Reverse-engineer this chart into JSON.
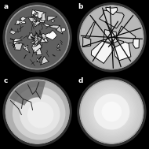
{
  "figsize": [
    1.9,
    1.89
  ],
  "dpi": 100,
  "bg_color": "#000000",
  "labels": [
    "a",
    "b",
    "c",
    "d"
  ],
  "label_color": "#ffffff",
  "label_fontsize": 6.5,
  "panel_a": {
    "disk_bg": "#606060",
    "piece_brightness_min": 0.72,
    "piece_brightness_max": 1.0,
    "n_pieces": 32,
    "crack_color": "#101010"
  },
  "panel_b": {
    "disk_bg": "#a0a0a0",
    "piece_brightness_min": 0.75,
    "piece_brightness_max": 0.98,
    "n_pieces": 7,
    "crack_color": "#101010"
  },
  "panel_c": {
    "disk_bg": "#c8c8c8",
    "inner_color": "#e0e0e0",
    "center_color": "#ececec",
    "crack_color": "#202020"
  },
  "panel_d": {
    "outer_color": "#d8d8d8",
    "inner_color": "#efefef",
    "center_color": "#f8f8f8"
  }
}
